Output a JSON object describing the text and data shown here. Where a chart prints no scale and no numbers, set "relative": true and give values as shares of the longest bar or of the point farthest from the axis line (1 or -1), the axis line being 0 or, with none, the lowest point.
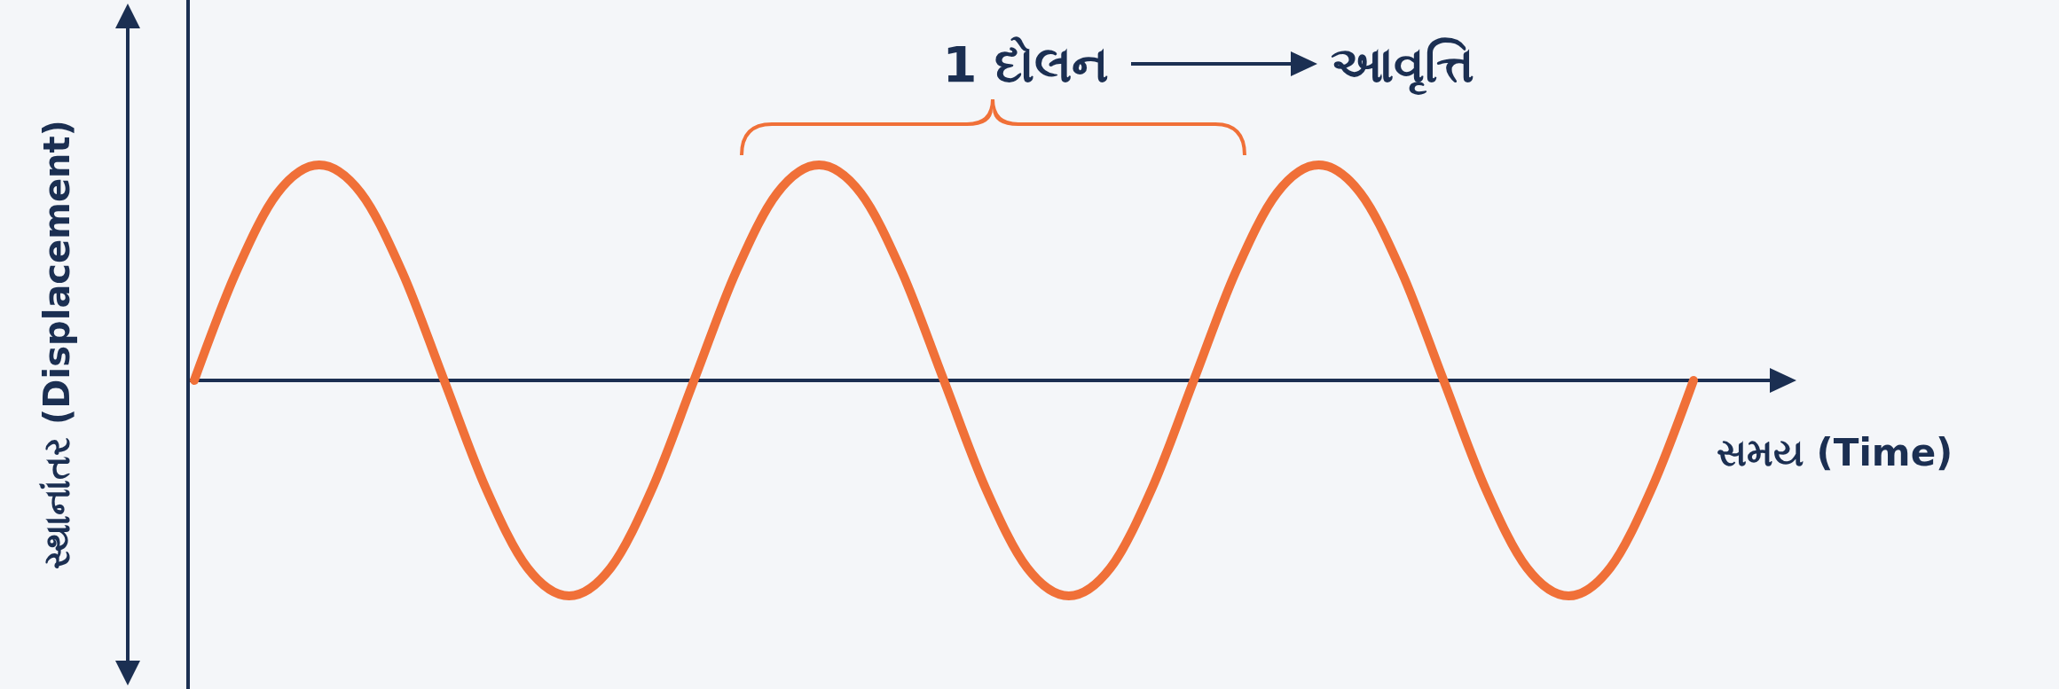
{
  "chart_data": {
    "type": "line",
    "relative": true,
    "categories": [
      null,
      null,
      null,
      null,
      null,
      null,
      null,
      null,
      null,
      null,
      null,
      null,
      null,
      null,
      null,
      null,
      null,
      null,
      null,
      null,
      null,
      null,
      null,
      null,
      null,
      null,
      null,
      null,
      null,
      null,
      null,
      null,
      null,
      null,
      null,
      null,
      null
    ],
    "values": [
      0,
      0.5,
      0.87,
      1,
      0.87,
      0.5,
      0,
      -0.5,
      -0.87,
      -1,
      -0.87,
      -0.5,
      0,
      0.5,
      0.87,
      1,
      0.87,
      0.5,
      0,
      -0.5,
      -0.87,
      -1,
      -0.87,
      -0.5,
      0,
      0.5,
      0.87,
      1,
      0.87,
      0.5,
      0,
      -0.5,
      -0.87,
      -1,
      -0.87,
      -0.5,
      0
    ],
    "color": "#f07038",
    "xlabel": "સમય (Time)",
    "ylabel": "સ્થાનાંતર (Displacement)",
    "annotations": [
      "1 દોલન",
      "આવૃત્તિ"
    ]
  }
}
